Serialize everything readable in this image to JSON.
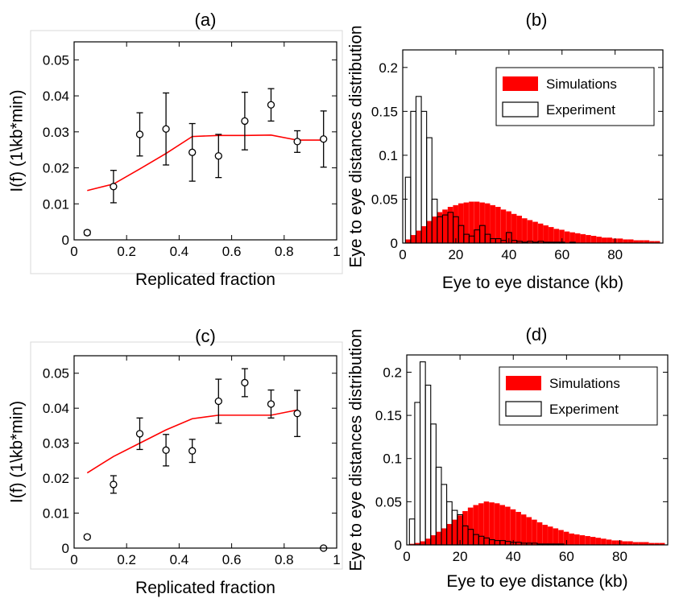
{
  "colors": {
    "simulation": "#ff0000",
    "experiment_fill": "#ffffff",
    "experiment_stroke": "#000000",
    "axis": "#000000"
  },
  "chart_data": [
    {
      "panel": "(a)",
      "type": "scatter",
      "xlabel": "Replicated fraction",
      "ylabel": "I(f) (1\\kb*min)",
      "xlim": [
        0,
        1.0
      ],
      "ylim": [
        0,
        0.055
      ],
      "xticks": [
        0,
        0.2,
        0.4,
        0.6,
        0.8,
        1
      ],
      "xtick_labels": [
        "0",
        "0.2",
        "0.4",
        "0.6",
        "0.8",
        "1"
      ],
      "yticks": [
        0,
        0.01,
        0.02,
        0.03,
        0.04,
        0.05
      ],
      "ytick_labels": [
        "0",
        "0.01",
        "0.02",
        "0.03",
        "0.04",
        "0.05"
      ],
      "grid": false,
      "line": {
        "x": [
          0.05,
          0.15,
          0.25,
          0.35,
          0.45,
          0.55,
          0.65,
          0.75,
          0.85,
          0.95
        ],
        "y": [
          0.0137,
          0.0155,
          0.0197,
          0.024,
          0.0287,
          0.029,
          0.029,
          0.0291,
          0.0277,
          0.0277
        ]
      },
      "points": {
        "x": [
          0.05,
          0.15,
          0.25,
          0.35,
          0.45,
          0.55,
          0.65,
          0.75,
          0.85,
          0.95
        ],
        "y": [
          0.002,
          0.0148,
          0.0293,
          0.0308,
          0.0243,
          0.0233,
          0.033,
          0.0375,
          0.0273,
          0.028
        ],
        "err": [
          0.0006,
          0.0045,
          0.006,
          0.01,
          0.008,
          0.006,
          0.008,
          0.0045,
          0.003,
          0.0078
        ]
      }
    },
    {
      "panel": "(b)",
      "type": "bar",
      "xlabel": "Eye to eye distance (kb)",
      "ylabel": "Eye to eye distances distribution",
      "xlim": [
        0,
        98
      ],
      "ylim": [
        0,
        0.22
      ],
      "xticks": [
        0,
        20,
        40,
        60,
        80
      ],
      "xtick_labels": [
        "0",
        "20",
        "40",
        "60",
        "80"
      ],
      "yticks": [
        0,
        0.05,
        0.1,
        0.15,
        0.2
      ],
      "ytick_labels": [
        "0",
        "0.05",
        "0.1",
        "0.15",
        "0.2"
      ],
      "legend": {
        "position": "top-right",
        "entries": [
          "Simulations",
          "Experiment"
        ]
      },
      "bin_width": 2,
      "bin_start": 2,
      "series": [
        {
          "name": "Simulations",
          "values": [
            0.004,
            0.009,
            0.014,
            0.019,
            0.025,
            0.03,
            0.035,
            0.038,
            0.041,
            0.043,
            0.045,
            0.046,
            0.047,
            0.047,
            0.046,
            0.045,
            0.043,
            0.041,
            0.038,
            0.036,
            0.033,
            0.031,
            0.028,
            0.026,
            0.024,
            0.022,
            0.02,
            0.018,
            0.016,
            0.015,
            0.013,
            0.012,
            0.011,
            0.01,
            0.009,
            0.008,
            0.007,
            0.006,
            0.006,
            0.005,
            0.005,
            0.004,
            0.004,
            0.003,
            0.003,
            0.003,
            0.002,
            0.002
          ]
        },
        {
          "name": "Experiment",
          "values": [
            0.075,
            0.15,
            0.167,
            0.15,
            0.12,
            0.05,
            0.03,
            0.032,
            0.035,
            0.03,
            0.02,
            0.01,
            0.008,
            0.015,
            0.02,
            0.01,
            0.005,
            0.005,
            0.003,
            0.012,
            0.003,
            0.002,
            0.001,
            0.002,
            0.001,
            0.002,
            0.001,
            0.001,
            0.001,
            0.001,
            0.0,
            0.001,
            0.0,
            0.0,
            0.0,
            0.0,
            0.0,
            0.0,
            0.0,
            0.0,
            0.0,
            0.0,
            0.0,
            0.0,
            0.0,
            0.0,
            0.0,
            0.0
          ]
        }
      ]
    },
    {
      "panel": "(c)",
      "type": "scatter",
      "xlabel": "Replicated fraction",
      "ylabel": "I(f) (1\\kb*min)",
      "xlim": [
        0,
        1.0
      ],
      "ylim": [
        0,
        0.055
      ],
      "xticks": [
        0,
        0.2,
        0.4,
        0.6,
        0.8,
        1
      ],
      "xtick_labels": [
        "0",
        "0.2",
        "0.4",
        "0.6",
        "0.8",
        "1"
      ],
      "yticks": [
        0,
        0.01,
        0.02,
        0.03,
        0.04,
        0.05
      ],
      "ytick_labels": [
        "0",
        "0.01",
        "0.02",
        "0.03",
        "0.04",
        "0.05"
      ],
      "grid": false,
      "line": {
        "x": [
          0.05,
          0.15,
          0.25,
          0.35,
          0.45,
          0.55,
          0.65,
          0.75,
          0.85
        ],
        "y": [
          0.0215,
          0.0262,
          0.03,
          0.0338,
          0.037,
          0.038,
          0.038,
          0.038,
          0.0395
        ]
      },
      "points": {
        "x": [
          0.05,
          0.15,
          0.25,
          0.35,
          0.45,
          0.55,
          0.65,
          0.75,
          0.85,
          0.95
        ],
        "y": [
          0.0032,
          0.0182,
          0.0327,
          0.028,
          0.0278,
          0.042,
          0.0473,
          0.0412,
          0.0385,
          0.0
        ],
        "err": [
          0.0005,
          0.0025,
          0.0045,
          0.0045,
          0.0033,
          0.0063,
          0.004,
          0.004,
          0.0066,
          0.0
        ]
      }
    },
    {
      "panel": "(d)",
      "type": "bar",
      "xlabel": "Eye to eye distance (kb)",
      "ylabel": "Eye to eye distances distribution",
      "xlim": [
        0,
        98
      ],
      "ylim": [
        0,
        0.22
      ],
      "xticks": [
        0,
        20,
        40,
        60,
        80
      ],
      "xtick_labels": [
        "0",
        "20",
        "40",
        "60",
        "80"
      ],
      "yticks": [
        0,
        0.05,
        0.1,
        0.15,
        0.2
      ],
      "ytick_labels": [
        "0",
        "0.05",
        "0.1",
        "0.15",
        "0.2"
      ],
      "legend": {
        "position": "top-right",
        "entries": [
          "Simulations",
          "Experiment"
        ]
      },
      "bin_width": 2,
      "bin_start": 2,
      "series": [
        {
          "name": "Simulations",
          "values": [
            0.001,
            0.002,
            0.004,
            0.007,
            0.011,
            0.015,
            0.019,
            0.024,
            0.029,
            0.034,
            0.039,
            0.043,
            0.046,
            0.048,
            0.05,
            0.049,
            0.048,
            0.046,
            0.044,
            0.041,
            0.038,
            0.035,
            0.032,
            0.029,
            0.026,
            0.023,
            0.021,
            0.019,
            0.017,
            0.015,
            0.013,
            0.012,
            0.011,
            0.01,
            0.009,
            0.008,
            0.007,
            0.006,
            0.005,
            0.005,
            0.004,
            0.004,
            0.003,
            0.003,
            0.003,
            0.002,
            0.002,
            0.002
          ]
        },
        {
          "name": "Experiment",
          "values": [
            0.03,
            0.165,
            0.212,
            0.185,
            0.14,
            0.09,
            0.07,
            0.05,
            0.04,
            0.035,
            0.022,
            0.018,
            0.012,
            0.01,
            0.008,
            0.006,
            0.005,
            0.005,
            0.004,
            0.003,
            0.003,
            0.002,
            0.002,
            0.002,
            0.001,
            0.001,
            0.001,
            0.001,
            0.001,
            0.0,
            0.0,
            0.0,
            0.0,
            0.0,
            0.0,
            0.0,
            0.0,
            0.0,
            0.0,
            0.0,
            0.0,
            0.0,
            0.0,
            0.0,
            0.0,
            0.0,
            0.0,
            0.0
          ]
        }
      ]
    }
  ]
}
